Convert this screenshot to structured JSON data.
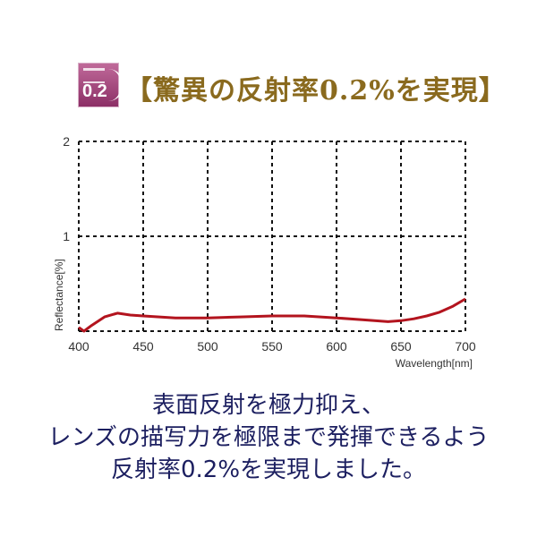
{
  "badge": {
    "logo_text": "0.2",
    "color": "#9a3a72"
  },
  "title": "【驚異の反射率0.2%を実現】",
  "captions": [
    "表面反射を極力抑え、",
    "レンズの描写力を極限まで発揮できるよう",
    "反射率0.2%を実現しました。"
  ],
  "chart_data": {
    "type": "line",
    "xlabel": "Wavelength[nm]",
    "ylabel": "Reflectance[%]",
    "xlim": [
      400,
      700
    ],
    "ylim": [
      0,
      2
    ],
    "xticks": [
      "400",
      "450",
      "500",
      "550",
      "600",
      "650",
      "700"
    ],
    "yticks": [
      "1",
      "2"
    ],
    "grid": true,
    "grid_style": "dashed",
    "line_color": "#b3141e",
    "series": [
      {
        "x": [
          400,
          404,
          410,
          420,
          430,
          440,
          450,
          475,
          500,
          525,
          550,
          575,
          600,
          620,
          640,
          650,
          660,
          670,
          680,
          690,
          700
        ],
        "y": [
          0.04,
          0.0,
          0.06,
          0.15,
          0.19,
          0.17,
          0.16,
          0.14,
          0.14,
          0.15,
          0.16,
          0.16,
          0.14,
          0.12,
          0.1,
          0.11,
          0.13,
          0.16,
          0.2,
          0.26,
          0.34
        ]
      }
    ]
  }
}
